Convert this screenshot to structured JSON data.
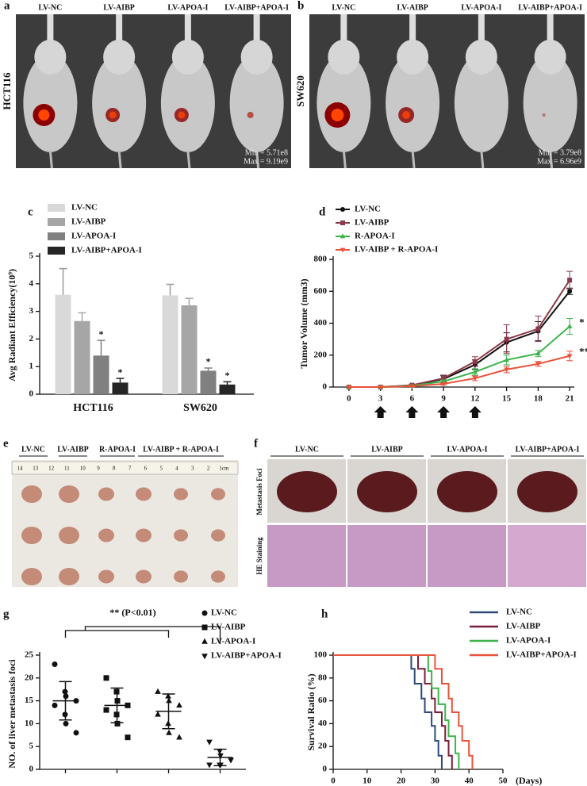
{
  "panels": {
    "a": {
      "letter": "a",
      "columns": [
        "LV-NC",
        "LV-AIBP",
        "LV-APOA-I",
        "LV-AIBP+APOA-I"
      ],
      "cell_line": "HCT116",
      "scale_min": "Min = 5.71e8",
      "scale_max": "Max = 9.19e9"
    },
    "b": {
      "letter": "b",
      "columns": [
        "LV-NC",
        "LV-AIBP",
        "LV-APOA-I",
        "LV-AIBP+APOA-I"
      ],
      "cell_line": "SW620",
      "scale_min": "Min = 3.79e8",
      "scale_max": "Max = 6.96e9"
    },
    "e": {
      "letter": "e",
      "groups": [
        "LV-NC",
        "LV-AIBP",
        "R-APOA-I",
        "LV-AIBP + R-APOA-I"
      ],
      "ruler": [
        "14",
        "13",
        "12",
        "11",
        "10",
        "9",
        "8",
        "7",
        "6",
        "5",
        "4",
        "3",
        "2",
        "1cm"
      ]
    },
    "f": {
      "letter": "f",
      "columns": [
        "LV-NC",
        "LV-AIBP",
        "LV-APOA-I",
        "LV-AIBP+APOA-I"
      ],
      "rows": [
        "Metastasis Foci",
        "HE Staining"
      ]
    }
  },
  "chart_data": [
    {
      "type": "bar",
      "letter": "c",
      "ylabel": "Avg Radiant Efficiency(10⁹)",
      "categories": [
        "HCT116",
        "SW620"
      ],
      "ylim": [
        0,
        5
      ],
      "yticks": [
        0,
        1,
        2,
        3,
        4,
        5
      ],
      "series": [
        {
          "name": "LV-NC",
          "color": "#d9d9d9",
          "values": [
            3.6,
            3.58
          ],
          "errors": [
            0.95,
            0.4
          ],
          "significance": [
            null,
            null
          ]
        },
        {
          "name": "LV-AIBP",
          "color": "#a6a6a6",
          "values": [
            2.65,
            3.22
          ],
          "errors": [
            0.3,
            0.25
          ],
          "significance": [
            null,
            null
          ]
        },
        {
          "name": "LV-APOA-I",
          "color": "#808080",
          "values": [
            1.4,
            0.85
          ],
          "errors": [
            0.55,
            0.1
          ],
          "significance": [
            "*",
            "*"
          ]
        },
        {
          "name": "LV-AIBP+APOA-I",
          "color": "#262626",
          "values": [
            0.42,
            0.35
          ],
          "errors": [
            0.15,
            0.1
          ],
          "significance": [
            "*",
            "*"
          ]
        }
      ]
    },
    {
      "type": "line",
      "letter": "d",
      "ylabel": "Tumor Volume (mm3)",
      "x": [
        0,
        3,
        6,
        9,
        12,
        15,
        18,
        21
      ],
      "xlim": [
        -1.5,
        22.5
      ],
      "xticks": [
        0,
        3,
        6,
        9,
        12,
        15,
        18,
        21
      ],
      "ylim": [
        0,
        800
      ],
      "yticks": [
        0,
        200,
        400,
        600,
        800
      ],
      "treatment_days": [
        3,
        6,
        9,
        12
      ],
      "series": [
        {
          "name": "LV-NC",
          "color": "#111111",
          "marker": "circle",
          "values": [
            0,
            0,
            10,
            50,
            140,
            280,
            350,
            600
          ],
          "errors": [
            0,
            0,
            5,
            20,
            30,
            60,
            60,
            20
          ],
          "significance": null
        },
        {
          "name": "LV-AIBP",
          "color": "#8b3a4a",
          "marker": "square",
          "values": [
            0,
            0,
            12,
            55,
            160,
            300,
            365,
            670
          ],
          "errors": [
            0,
            0,
            5,
            20,
            30,
            90,
            80,
            55
          ],
          "significance": null
        },
        {
          "name": "R-APOA-I",
          "color": "#3cb44b",
          "marker": "triangle-up",
          "values": [
            0,
            0,
            8,
            35,
            95,
            170,
            210,
            380
          ],
          "errors": [
            0,
            0,
            5,
            10,
            20,
            30,
            20,
            50
          ],
          "significance": "*"
        },
        {
          "name": "LV-AIBP + R-APOA-I",
          "color": "#e8533a",
          "marker": "triangle-down",
          "values": [
            0,
            0,
            5,
            20,
            55,
            110,
            145,
            195
          ],
          "errors": [
            0,
            0,
            3,
            8,
            15,
            20,
            15,
            30
          ],
          "significance": "**"
        }
      ]
    },
    {
      "type": "dot",
      "letter": "g",
      "ylabel": "NO. of liver metastasis foci",
      "comparison": "** (P<0.01)",
      "ylim": [
        0,
        25
      ],
      "yticks": [
        0,
        5,
        10,
        15,
        20,
        25
      ],
      "series": [
        {
          "name": "LV-NC",
          "marker": "circle",
          "values": [
            23,
            17,
            16,
            15,
            14,
            12,
            10,
            8
          ],
          "mean": 15,
          "sd": 4.2
        },
        {
          "name": "LV-AIBP",
          "marker": "square",
          "values": [
            20,
            17,
            15,
            14,
            13,
            12,
            10,
            7
          ],
          "mean": 14,
          "sd": 3.8
        },
        {
          "name": "LV-APOA-I",
          "marker": "triangle-up",
          "values": [
            17,
            16,
            15,
            14,
            12,
            10,
            8,
            7
          ],
          "mean": 12.7,
          "sd": 3.8
        },
        {
          "name": "LV-AIBP+APOA-I",
          "marker": "triangle-down",
          "values": [
            6,
            4,
            3,
            2,
            1,
            1,
            1
          ],
          "mean": 2.6,
          "sd": 1.8
        }
      ]
    },
    {
      "type": "step",
      "letter": "h",
      "ylabel": "Survival Ratio (%)",
      "xunit": "(Days)",
      "xlim": [
        0,
        50
      ],
      "xticks": [
        0,
        10,
        20,
        30,
        40,
        50
      ],
      "ylim": [
        0,
        100
      ],
      "yticks": [
        0,
        20,
        40,
        60,
        80,
        100
      ],
      "series": [
        {
          "name": "LV-NC",
          "color": "#2e4a7a",
          "x": [
            0,
            23,
            24,
            26,
            27,
            29,
            30,
            31,
            32
          ],
          "values": [
            100,
            88,
            75,
            62,
            50,
            38,
            25,
            12,
            0
          ]
        },
        {
          "name": "LV-AIBP",
          "color": "#7b1f3a",
          "x": [
            0,
            25,
            27,
            29,
            30,
            32,
            33,
            34,
            35
          ],
          "values": [
            100,
            88,
            75,
            62,
            50,
            38,
            25,
            12,
            0
          ]
        },
        {
          "name": "LV-APOA-I",
          "color": "#3cb44b",
          "x": [
            0,
            28,
            29,
            31,
            33,
            34,
            36,
            37
          ],
          "values": [
            100,
            86,
            71,
            57,
            43,
            29,
            14,
            0
          ]
        },
        {
          "name": "LV-AIBP+APOA-I",
          "color": "#e8533a",
          "x": [
            0,
            30,
            32,
            34,
            35,
            37,
            38,
            40,
            41
          ],
          "values": [
            100,
            88,
            75,
            62,
            50,
            38,
            25,
            12,
            0
          ]
        }
      ]
    }
  ]
}
